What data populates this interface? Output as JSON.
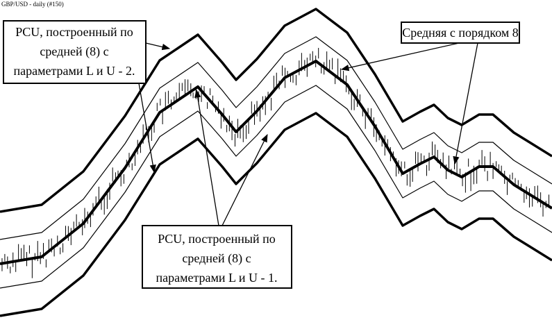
{
  "header": {
    "title": "GBP/USD - daily (#150)"
  },
  "callouts": [
    {
      "lines": [
        "PCU, построенный по",
        "средней (8) с",
        "параметрами L и U - 2."
      ]
    },
    {
      "lines": [
        "Средняя с порядком 8"
      ]
    },
    {
      "lines": [
        "PCU, построенный по",
        "средней (8) с",
        "параметрами L и U - 1."
      ]
    }
  ]
}
